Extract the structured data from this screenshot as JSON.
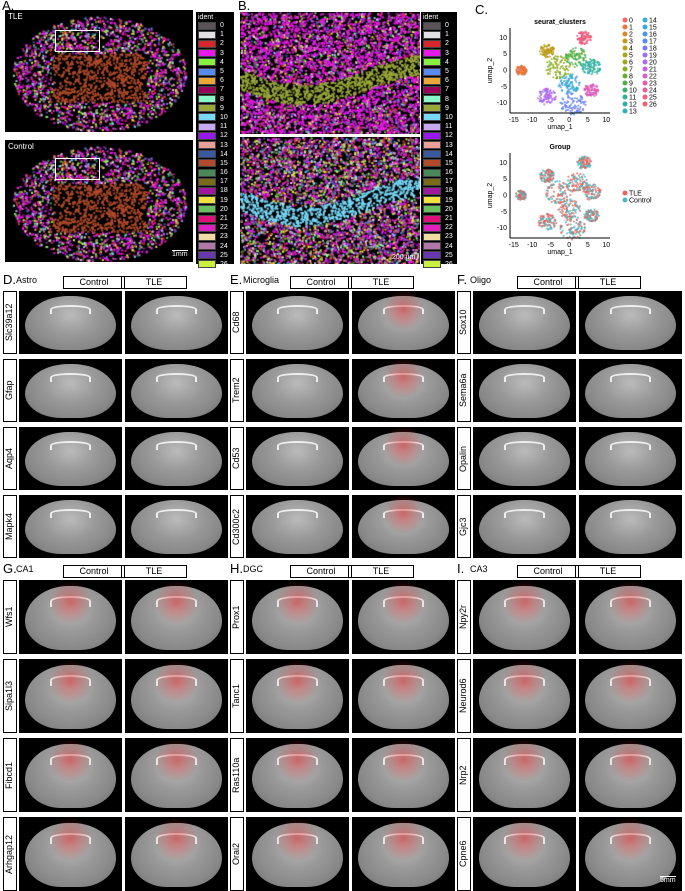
{
  "panelA": {
    "label": "A.",
    "top_title": "TLE",
    "bottom_title": "Control",
    "scale": "1mm",
    "legend_title": "ident"
  },
  "panelB": {
    "label": "B.",
    "legend_title": "ident",
    "scale": "200 um"
  },
  "clusters": [
    "0",
    "1",
    "2",
    "3",
    "4",
    "5",
    "6",
    "7",
    "8",
    "9",
    "10",
    "11",
    "12",
    "13",
    "14",
    "15",
    "16",
    "17",
    "18",
    "19",
    "20",
    "21",
    "22",
    "23",
    "24",
    "25",
    "26"
  ],
  "cluster_colors": [
    "#5a5458",
    "#e2e0e2",
    "#d8262c",
    "#e818e8",
    "#88f040",
    "#5a8af0",
    "#eca838",
    "#98005a",
    "#88f8c8",
    "#9aa83a",
    "#78d8f8",
    "#c8a8f0",
    "#9818f0",
    "#e8a098",
    "#3a5aa0",
    "#b04a2a",
    "#4a8a5a",
    "#7a6a1a",
    "#a018a0",
    "#f0e040",
    "#68c060",
    "#e0107a",
    "#e020c0",
    "#f0dca0",
    "#b078a8",
    "#6838b0",
    "#c8f040"
  ],
  "panelC": {
    "label": "C.",
    "chart_data": [
      {
        "type": "scatter",
        "title": "seurat_clusters",
        "xlabel": "umap_1",
        "ylabel": "umap_2",
        "xticks": [
          "-15",
          "-10",
          "-5",
          "0",
          "5",
          "10"
        ],
        "yticks": [
          "10",
          "5",
          "0",
          "-5",
          "-10"
        ],
        "xlim": [
          -16,
          11
        ],
        "ylim": [
          -13,
          13
        ],
        "legend": [
          "0",
          "1",
          "2",
          "3",
          "4",
          "5",
          "6",
          "7",
          "8",
          "9",
          "10",
          "11",
          "12",
          "13",
          "14",
          "15",
          "16",
          "17",
          "18",
          "19",
          "20",
          "21",
          "22",
          "23",
          "24",
          "25",
          "26"
        ],
        "legend_colors": [
          "#f06a60",
          "#e8743a",
          "#d8882a",
          "#c8951a",
          "#b8a01a",
          "#a8a818",
          "#98ac18",
          "#80b020",
          "#68b030",
          "#50b048",
          "#38b068",
          "#30b090",
          "#30b0a8",
          "#30b0c0",
          "#38b0d0",
          "#40a8e0",
          "#4898f0",
          "#5888f8",
          "#7878f8",
          "#9870f8",
          "#b068f0",
          "#c860e0",
          "#d860c8",
          "#e060b0",
          "#e86098",
          "#f06080",
          "#f06070"
        ]
      },
      {
        "type": "scatter",
        "title": "Group",
        "xlabel": "umap_1",
        "ylabel": "umap_2",
        "xticks": [
          "-15",
          "-10",
          "-5",
          "0",
          "5",
          "10"
        ],
        "yticks": [
          "10",
          "5",
          "0",
          "-5",
          "-10"
        ],
        "xlim": [
          -16,
          11
        ],
        "ylim": [
          -13,
          13
        ],
        "legend": [
          "TLE",
          "Control"
        ],
        "legend_colors": [
          "#e8645a",
          "#4ab8c0"
        ]
      }
    ]
  },
  "groups": [
    {
      "label": "D.",
      "name": "Astro",
      "genes": [
        "Slc39a12",
        "Gfap",
        "Aqp4",
        "Mapk4"
      ]
    },
    {
      "label": "E.",
      "name": "Microglia",
      "genes": [
        "Cd68",
        "Trem2",
        "Cd53",
        "Cd300c2"
      ]
    },
    {
      "label": "F.",
      "name": "Oligo",
      "genes": [
        "Sox10",
        "Sema6a",
        "Opalin",
        "Gjc3"
      ]
    },
    {
      "label": "G.",
      "name": "CA1",
      "genes": [
        "Wfs1",
        "Sipa1l3",
        "Fibcd1",
        "Arhgap12"
      ]
    },
    {
      "label": "H.",
      "name": "DGC",
      "genes": [
        "Prox1",
        "Tanc1",
        "Ras110a",
        "Orai2"
      ]
    },
    {
      "label": "I.",
      "name": "CA3",
      "genes": [
        "Npy2r",
        "Neurod6",
        "Nrp2",
        "Cpne6"
      ]
    }
  ],
  "conditions": [
    "Control",
    "TLE"
  ],
  "final_scale": "5mm"
}
